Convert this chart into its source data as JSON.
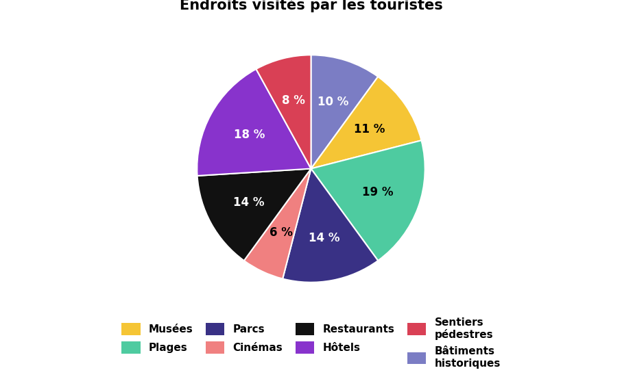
{
  "title": "Endroits visités par les touristes",
  "values": [
    10,
    11,
    19,
    14,
    6,
    14,
    18,
    8
  ],
  "colors": [
    "#7B7DC4",
    "#F5C535",
    "#4ECBA0",
    "#393185",
    "#F08080",
    "#111111",
    "#8833CC",
    "#D94055"
  ],
  "pct_labels": [
    "10 %",
    "11 %",
    "19 %",
    "14 %",
    "6 %",
    "14 %",
    "18 %",
    "8 %"
  ],
  "pct_colors": [
    "white",
    "black",
    "black",
    "white",
    "black",
    "white",
    "white",
    "white"
  ],
  "startangle": 90,
  "counterclock": false,
  "title_fontsize": 15,
  "label_fontsize": 12,
  "legend_labels": [
    "Musées",
    "Plages",
    "Parcs",
    "Cinémas",
    "Restaurants",
    "Hôtels",
    "Sentiers\npédestres",
    "Bâtiments\nhistoriques"
  ],
  "legend_colors": [
    "#F5C535",
    "#4ECBA0",
    "#393185",
    "#F08080",
    "#111111",
    "#8833CC",
    "#D94055",
    "#7B7DC4"
  ]
}
